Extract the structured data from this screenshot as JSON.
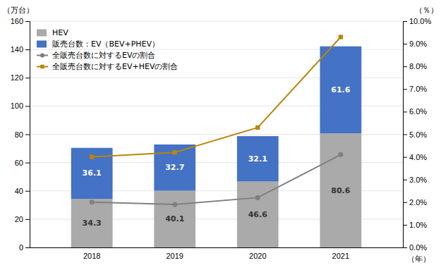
{
  "chart_data": {
    "type": "bar",
    "categories": [
      "2018",
      "2019",
      "2020",
      "2021"
    ],
    "x_label": "（年）",
    "y_label": "（万台）",
    "y2_label": "（％）",
    "stacked": true,
    "grid": true,
    "legend": "upper left",
    "ylim": [
      0,
      160
    ],
    "yticks": [
      0,
      20,
      40,
      60,
      80,
      100,
      120,
      140,
      160
    ],
    "y2lim": [
      0.0,
      10.0
    ],
    "y2ticks": [
      {
        "value": 0.0,
        "label": "0.0%"
      },
      {
        "value": 1.0,
        "label": "1.0%"
      },
      {
        "value": 2.0,
        "label": "2.0%"
      },
      {
        "value": 3.0,
        "label": "3.0%"
      },
      {
        "value": 4.0,
        "label": "4.0%"
      },
      {
        "value": 5.0,
        "label": "5.0%"
      },
      {
        "value": 6.0,
        "label": "6.0%"
      },
      {
        "value": 7.0,
        "label": "7.0%"
      },
      {
        "value": 8.0,
        "label": "8.0%"
      },
      {
        "value": 9.0,
        "label": "9.0%"
      },
      {
        "value": 10.0,
        "label": "10.0%"
      }
    ],
    "series": [
      {
        "name": "HEV",
        "type": "bar",
        "color": "#AAAAAA",
        "data_labels": true,
        "values": [
          34.3,
          40.1,
          46.6,
          80.6
        ]
      },
      {
        "name": "販売台数：EV（BEV+PHEV）",
        "type": "bar",
        "color": "#4472C4",
        "data_labels": true,
        "values": [
          36.1,
          32.7,
          32.1,
          61.6
        ]
      },
      {
        "name": "全販売台数に対するEVの割合",
        "type": "line",
        "axis": "y2",
        "color": "#808080",
        "marker": "circle",
        "values": [
          2.0,
          1.9,
          2.2,
          4.1
        ]
      },
      {
        "name": "全販売台数に対するEV+HEVの割合",
        "type": "line",
        "axis": "y2",
        "color": "#B8860B",
        "marker": "square",
        "values": [
          4.0,
          4.2,
          5.3,
          9.3
        ]
      }
    ]
  }
}
